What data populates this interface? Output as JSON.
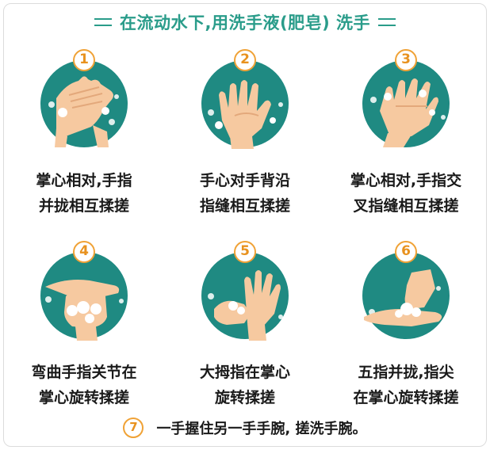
{
  "header": {
    "title": "在流动水下,用洗手液(肥皂) 洗手"
  },
  "colors": {
    "teal": "#1f8a82",
    "title": "#2a9c8a",
    "orange": "#f0a236",
    "skin": "#f6c9a0"
  },
  "steps": [
    {
      "num": "1",
      "line1": "掌心相对,手指",
      "line2": "并拢相互揉搓"
    },
    {
      "num": "2",
      "line1": "手心对手背沿",
      "line2": "指缝相互揉搓"
    },
    {
      "num": "3",
      "line1": "掌心相对,手指交",
      "line2": "叉指缝相互揉搓"
    },
    {
      "num": "4",
      "line1": "弯曲手指关节在",
      "line2": "掌心旋转揉搓"
    },
    {
      "num": "5",
      "line1": "大拇指在掌心",
      "line2": "旋转揉搓"
    },
    {
      "num": "6",
      "line1": "五指并拢,指尖",
      "line2": "在掌心旋转揉搓"
    }
  ],
  "footer": {
    "num": "7",
    "text": "一手握住另一手手腕, 搓洗手腕。"
  }
}
